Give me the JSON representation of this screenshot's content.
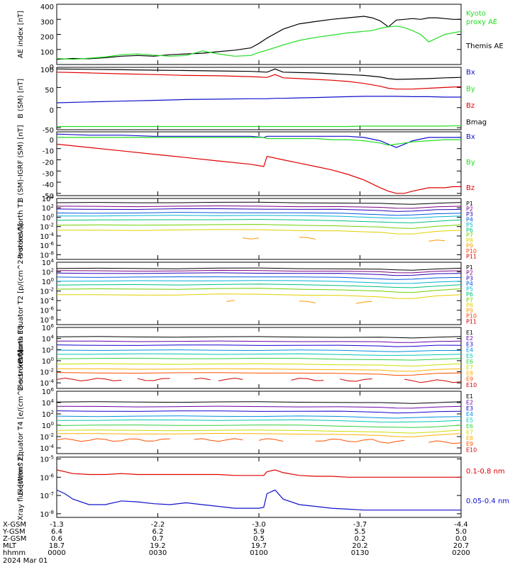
{
  "figure": {
    "date": "2024 Mar 01",
    "colors": {
      "black": "#000000",
      "red": "#e00000",
      "green": "#22dd22",
      "blue": "#1010cc",
      "p_palette": [
        "#000000",
        "#7a0080",
        "#2a00b8",
        "#0058e0",
        "#00b4d8",
        "#00c080",
        "#70d000",
        "#e0d000",
        "#ff9a00",
        "#ff4000",
        "#d00000"
      ],
      "e_palette": [
        "#000000",
        "#6a00a8",
        "#1400d0",
        "#0090e0",
        "#00c8b0",
        "#30d040",
        "#c8e000",
        "#ffb000",
        "#ff5000",
        "#d00000"
      ]
    }
  },
  "chart_data": [
    {
      "id": "ae",
      "type": "line",
      "ylabel": "AE index [nT]",
      "ylim": [
        0,
        400
      ],
      "yticks": [
        "400",
        "300",
        "200",
        "100",
        "0"
      ],
      "ytick_values": [
        400,
        300,
        200,
        100,
        0
      ],
      "x": [
        0,
        10,
        20,
        30,
        40,
        50,
        60,
        70,
        80,
        90,
        100,
        110,
        120,
        125,
        130,
        140,
        150,
        160,
        170,
        180,
        190,
        195,
        200,
        205,
        210,
        215,
        220,
        225,
        230,
        235,
        240,
        245,
        250
      ],
      "series": [
        {
          "name": "Themis AE",
          "color": "#000000",
          "values": [
            35,
            40,
            38,
            45,
            55,
            60,
            55,
            65,
            70,
            75,
            85,
            95,
            110,
            140,
            175,
            235,
            270,
            285,
            300,
            310,
            320,
            310,
            290,
            250,
            295,
            300,
            305,
            300,
            310,
            310,
            305,
            300,
            300
          ]
        },
        {
          "name": "Kyoto proxy AE",
          "color": "#22dd22",
          "values": [
            40,
            35,
            42,
            50,
            65,
            70,
            62,
            55,
            60,
            90,
            70,
            55,
            60,
            80,
            95,
            130,
            160,
            180,
            195,
            210,
            220,
            225,
            240,
            250,
            255,
            245,
            225,
            200,
            150,
            175,
            200,
            210,
            220
          ]
        }
      ],
      "legend": [
        "Kyoto",
        "proxy AE",
        "Themis AE"
      ]
    },
    {
      "id": "b_sm",
      "type": "line",
      "ylabel": "B (SM) [nT]",
      "ylim": [
        -55,
        100
      ],
      "yticks": [
        "100",
        "50",
        "0",
        "-50"
      ],
      "ytick_values": [
        100,
        50,
        0,
        -50
      ],
      "x": [
        0,
        20,
        40,
        60,
        80,
        100,
        120,
        130,
        135,
        140,
        150,
        160,
        170,
        180,
        190,
        200,
        205,
        210,
        220,
        230,
        240,
        250
      ],
      "series": [
        {
          "name": "Bx",
          "color": "#000000",
          "values": [
            96,
            95,
            94,
            93,
            92,
            91,
            90,
            88,
            96,
            88,
            87,
            86,
            84,
            82,
            80,
            76,
            72,
            70,
            71,
            72,
            74,
            75
          ]
        },
        {
          "name": "By",
          "color": "#22dd22",
          "values": [
            -47,
            -47,
            -47,
            -47,
            -47,
            -47,
            -47,
            -47,
            -47,
            -47,
            -47,
            -47,
            -47,
            -47,
            -46,
            -46,
            -46,
            -46,
            -46,
            -46,
            -46,
            -45
          ]
        },
        {
          "name": "Bz",
          "color": "#e00000",
          "values": [
            88,
            86,
            84,
            82,
            80,
            79,
            77,
            75,
            82,
            74,
            72,
            70,
            68,
            65,
            60,
            53,
            48,
            46,
            46,
            48,
            50,
            52
          ]
        },
        {
          "name": "Bmag",
          "color": "#1010cc",
          "values": [
            12,
            14,
            16,
            18,
            20,
            21,
            22,
            22,
            23,
            23,
            24,
            25,
            26,
            27,
            28,
            28,
            28,
            28,
            27,
            27,
            26,
            26
          ]
        }
      ],
      "legend": [
        "Bx",
        "By",
        "Bz",
        "Bmag"
      ]
    },
    {
      "id": "b_igrf",
      "type": "line",
      "ylabel": "B (SM)-IGRF (SM) [nT]",
      "ylim": [
        -52,
        5
      ],
      "yticks": [
        "0",
        "-10",
        "-20",
        "-30",
        "-40",
        "-50"
      ],
      "ytick_values": [
        0,
        -10,
        -20,
        -30,
        -40,
        -50
      ],
      "x": [
        0,
        20,
        40,
        60,
        80,
        100,
        120,
        128,
        130,
        140,
        150,
        160,
        170,
        180,
        190,
        200,
        205,
        210,
        215,
        220,
        230,
        240,
        245,
        250
      ],
      "series": [
        {
          "name": "Bx",
          "color": "#1010cc",
          "values": [
            3,
            2,
            2,
            1,
            1,
            1,
            1,
            0,
            1,
            1,
            1,
            1,
            1,
            1,
            0,
            -3,
            -6,
            -9,
            -6,
            -3,
            0,
            0,
            0,
            0
          ]
        },
        {
          "name": "By",
          "color": "#22dd22",
          "values": [
            0,
            0,
            0,
            0,
            0,
            0,
            0,
            0,
            -1,
            -1,
            -1,
            -1,
            -2,
            -2,
            -3,
            -5,
            -7,
            -6,
            -5,
            -4,
            -3,
            -2,
            -2,
            -2
          ]
        },
        {
          "name": "Bz",
          "color": "#e00000",
          "values": [
            -6,
            -9,
            -12,
            -15,
            -18,
            -21,
            -24,
            -26,
            -17,
            -20,
            -23,
            -26,
            -29,
            -33,
            -38,
            -45,
            -48,
            -50,
            -50,
            -48,
            -45,
            -45,
            -44,
            -44
          ]
        }
      ],
      "legend": [
        "Bx",
        "By",
        "Bz"
      ]
    },
    {
      "id": "protons_t1",
      "type": "line",
      "scale": "log",
      "ylabel": "Protons North T1",
      "ylim": [
        -9,
        4
      ],
      "yticks": [
        "10^4",
        "10^2",
        "10^0",
        "10^-2",
        "10^-4",
        "10^-6",
        "10^-8"
      ],
      "ytick_values": [
        4,
        2,
        0,
        -2,
        -4,
        -6,
        -8
      ],
      "legend": [
        "P1",
        "P2",
        "P3",
        "P4",
        "P5",
        "P6",
        "P7",
        "P8",
        "P9",
        "P10",
        "P11"
      ],
      "series_levels": [
        3.1,
        2.3,
        1.7,
        0.9,
        0.3,
        -0.6,
        -1.7,
        -2.8,
        -4.5,
        -5.5,
        -6.5
      ],
      "x": [
        0,
        25,
        50,
        75,
        100,
        125,
        150,
        175,
        200,
        210,
        220,
        235,
        250
      ],
      "trend": [
        0,
        0,
        0,
        0.1,
        0.1,
        0.1,
        0,
        -0.1,
        -0.4,
        -0.6,
        -0.6,
        -0.2,
        0
      ],
      "segments_p9": [
        [
          115,
          125
        ],
        [
          150,
          160
        ],
        [
          230,
          240
        ]
      ]
    },
    {
      "id": "protons_t2",
      "type": "line",
      "scale": "log",
      "ylabel": "Protons Equator T2 [p/(cm^2-s-sr-keV)]",
      "ylim": [
        -9,
        4
      ],
      "yticks": [
        "10^4",
        "10^2",
        "10^0",
        "10^-2",
        "10^-4",
        "10^-6",
        "10^-8"
      ],
      "ytick_values": [
        4,
        2,
        0,
        -2,
        -4,
        -6,
        -8
      ],
      "legend": [
        "P1",
        "P2",
        "P3",
        "P4",
        "P5",
        "P6",
        "P7",
        "P8",
        "P9",
        "P10",
        "P11"
      ],
      "series_levels": [
        2.7,
        2.2,
        1.7,
        0.9,
        0.1,
        -0.7,
        -1.6,
        -2.8,
        -4.3,
        -5.5,
        -6.5
      ],
      "x": [
        0,
        25,
        50,
        75,
        100,
        125,
        150,
        175,
        200,
        210,
        220,
        235,
        250
      ],
      "trend": [
        0,
        0,
        0,
        0,
        0.1,
        0.1,
        0,
        -0.1,
        -0.4,
        -0.6,
        -0.6,
        -0.2,
        0
      ],
      "segments_p9": [
        [
          105,
          112
        ],
        [
          150,
          162
        ],
        [
          185,
          195
        ]
      ]
    },
    {
      "id": "electrons_t3",
      "type": "line",
      "scale": "log",
      "ylabel": "Electrons North T3",
      "ylim": [
        -5,
        6
      ],
      "yticks": [
        "10^6",
        "10^4",
        "10^2",
        "10^0",
        "10^-2",
        "10^-4"
      ],
      "ytick_values": [
        6,
        4,
        2,
        0,
        -2,
        -4
      ],
      "legend": [
        "E1",
        "E2",
        "E3",
        "E4",
        "E5",
        "E6",
        "E7",
        "E8",
        "E9",
        "E10"
      ],
      "series_levels": [
        4.3,
        3.5,
        2.8,
        1.9,
        1.2,
        0.4,
        -0.6,
        -1.5,
        -2.2,
        -3.4
      ],
      "x": [
        0,
        25,
        50,
        75,
        100,
        125,
        150,
        175,
        200,
        210,
        220,
        235,
        250
      ],
      "trend": [
        0,
        0,
        0,
        0,
        0,
        0,
        0,
        -0.1,
        -0.2,
        -0.3,
        -0.3,
        -0.1,
        0
      ],
      "segments_e10": [
        [
          0,
          40
        ],
        [
          50,
          70
        ],
        [
          85,
          95
        ],
        [
          100,
          115
        ],
        [
          145,
          165
        ],
        [
          175,
          195
        ],
        [
          215,
          250
        ]
      ]
    },
    {
      "id": "electrons_t4",
      "type": "line",
      "scale": "log",
      "ylabel": "Electrons Equator T4 [e/(cm^2-s-sr-keV)]",
      "ylim": [
        -5,
        6
      ],
      "yticks": [
        "10^6",
        "10^4",
        "10^2",
        "10^0",
        "10^-2",
        "10^-4"
      ],
      "ytick_values": [
        6,
        4,
        2,
        0,
        -2,
        -4
      ],
      "legend": [
        "E1",
        "E2",
        "E3",
        "E4",
        "E5",
        "E6",
        "E7",
        "E8",
        "E9",
        "E10"
      ],
      "series_levels": [
        4.1,
        3.3,
        2.5,
        1.6,
        0.9,
        0.0,
        -0.9,
        -1.5,
        -2.6,
        -3.4
      ],
      "x": [
        0,
        25,
        50,
        75,
        100,
        125,
        150,
        175,
        200,
        210,
        220,
        235,
        250
      ],
      "trend": [
        0,
        0,
        0,
        0,
        0,
        0,
        0,
        -0.1,
        -0.3,
        -0.4,
        -0.4,
        -0.2,
        0
      ],
      "segments_e9": [
        [
          0,
          70
        ],
        [
          85,
          115
        ],
        [
          125,
          140
        ],
        [
          160,
          215
        ],
        [
          230,
          250
        ]
      ]
    },
    {
      "id": "xray",
      "type": "line",
      "scale": "log",
      "ylabel": "Xray flux [W/m^2]",
      "ylim": [
        -8.2,
        -4.9
      ],
      "yticks": [
        "10^-5",
        "10^-6",
        "10^-7",
        "10^-8"
      ],
      "ytick_values": [
        -5,
        -6,
        -7,
        -8
      ],
      "x": [
        0,
        5,
        10,
        20,
        30,
        40,
        50,
        60,
        70,
        80,
        90,
        100,
        110,
        120,
        125,
        128,
        130,
        135,
        140,
        150,
        160,
        170,
        180,
        190,
        200,
        210,
        220,
        230,
        240,
        250
      ],
      "series": [
        {
          "name": "0.1-0.8 nm",
          "color": "#e00000",
          "values": [
            -5.6,
            -5.7,
            -5.8,
            -5.85,
            -5.85,
            -5.8,
            -5.85,
            -5.85,
            -5.85,
            -5.85,
            -5.85,
            -5.85,
            -5.9,
            -5.9,
            -5.9,
            -5.9,
            -5.7,
            -5.6,
            -5.75,
            -5.9,
            -5.95,
            -5.95,
            -6.0,
            -6.0,
            -6.0,
            -6.0,
            -6.0,
            -6.0,
            -6.0,
            -6.0
          ]
        },
        {
          "name": "0.05-0.4 nm",
          "color": "#1010cc",
          "values": [
            -6.7,
            -6.9,
            -7.2,
            -7.5,
            -7.5,
            -7.3,
            -7.35,
            -7.45,
            -7.5,
            -7.4,
            -7.5,
            -7.6,
            -7.7,
            -7.7,
            -7.7,
            -7.65,
            -6.9,
            -6.7,
            -7.2,
            -7.5,
            -7.6,
            -7.7,
            -7.75,
            -7.8,
            -7.8,
            -7.8,
            -7.8,
            -7.8,
            -7.8,
            -7.8
          ]
        }
      ],
      "legend": [
        "0.1-0.8 nm",
        "0.05-0.4 nm"
      ]
    }
  ],
  "axis": {
    "rows": [
      {
        "label": "X-GSM",
        "values": [
          "-1.3",
          "-2.2",
          "-3.0",
          "-3.7",
          "-4.4"
        ]
      },
      {
        "label": "Y-GSM",
        "values": [
          "6.4",
          "6.2",
          "5.9",
          "5.5",
          "5.0"
        ]
      },
      {
        "label": "Z-GSM",
        "values": [
          "0.6",
          "0.7",
          "0.5",
          "0.2",
          "0.0"
        ]
      },
      {
        "label": "MLT",
        "values": [
          "18.7",
          "19.2",
          "19.7",
          "20.2",
          "20.7"
        ]
      },
      {
        "label": "hhmm",
        "values": [
          "0000",
          "0030",
          "0100",
          "0130",
          "0200"
        ]
      }
    ],
    "xlim": [
      0,
      250
    ]
  }
}
